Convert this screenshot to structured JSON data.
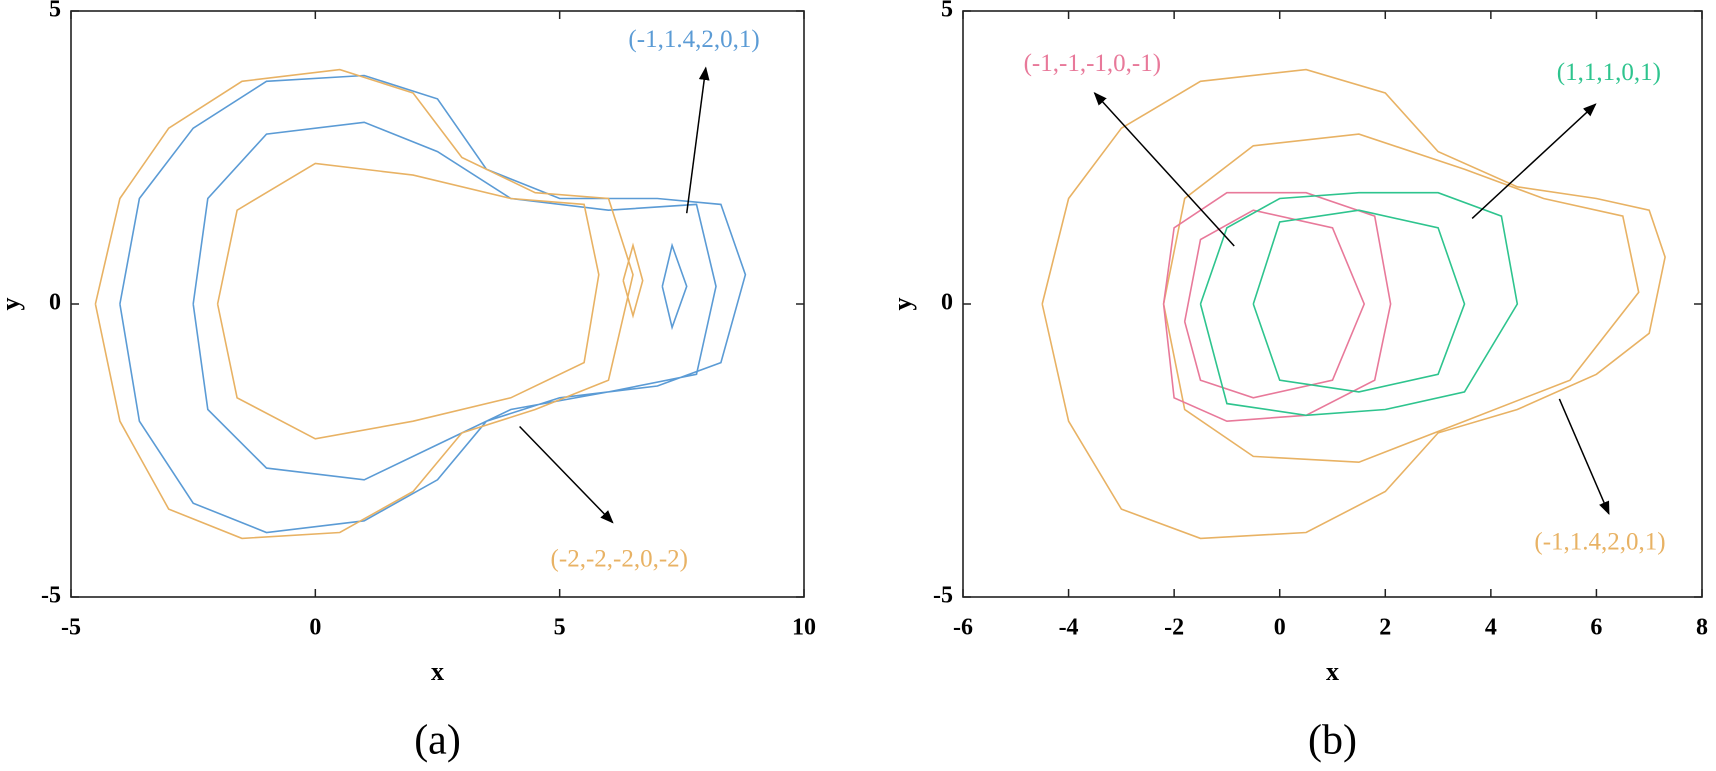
{
  "chart_data": [
    {
      "type": "line",
      "panel_label": "(a)",
      "xlabel": "x",
      "ylabel": "y",
      "xlim": [
        -5,
        10
      ],
      "ylim": [
        -5,
        5
      ],
      "xticks": [
        -5,
        0,
        5,
        10
      ],
      "yticks": [
        -5,
        0,
        5
      ],
      "series": [
        {
          "name": "(-1,1.4,2,0,1)",
          "color": "#5b9bd5",
          "x": [
            -4,
            -3.6,
            -2.5,
            -1,
            1,
            2.5,
            3.5,
            5,
            7,
            8.3,
            8.8,
            8.3,
            7,
            5,
            3.5,
            2.5,
            1,
            -1,
            -2.5,
            -3.6,
            -4,
            null,
            -2.5,
            -2.2,
            -1,
            1,
            2.5,
            4,
            6,
            7.8,
            8.2,
            7.8,
            6,
            4,
            2.5,
            1,
            -1,
            -2.2,
            -2.5,
            null,
            7.1,
            7.3,
            7.6,
            7.3,
            7.1
          ],
          "y": [
            0,
            -2,
            -3.4,
            -3.9,
            -3.7,
            -3,
            -2,
            -1.6,
            -1.4,
            -1,
            0.5,
            1.7,
            1.8,
            1.8,
            2.3,
            3.5,
            3.9,
            3.8,
            3,
            1.8,
            0,
            null,
            0,
            -1.8,
            -2.8,
            -3,
            -2.4,
            -1.8,
            -1.5,
            -1.2,
            0.3,
            1.7,
            1.6,
            1.8,
            2.6,
            3.1,
            2.9,
            1.8,
            0,
            null,
            0.3,
            -0.4,
            0.3,
            1,
            0.3
          ]
        },
        {
          "name": "(-2,-2,-2,0,-2)",
          "color": "#e8b264",
          "x": [
            -4.5,
            -4,
            -3,
            -1.5,
            0.5,
            2,
            3,
            4.5,
            6,
            6.5,
            6,
            4.5,
            3,
            2,
            0.5,
            -1.5,
            -3,
            -4,
            -4.5,
            null,
            -2,
            -1.6,
            0,
            2,
            4,
            5.5,
            5.8,
            5.5,
            4,
            2,
            0,
            -1.6,
            -2,
            null,
            6.3,
            6.5,
            6.7,
            6.5,
            6.3
          ],
          "y": [
            0,
            -2,
            -3.5,
            -4,
            -3.9,
            -3.2,
            -2.2,
            -1.8,
            -1.3,
            0.5,
            1.8,
            1.9,
            2.5,
            3.6,
            4,
            3.8,
            3,
            1.8,
            0,
            null,
            0,
            -1.6,
            -2.3,
            -2,
            -1.6,
            -1,
            0.5,
            1.7,
            1.8,
            2.2,
            2.4,
            1.6,
            0,
            null,
            0.4,
            -0.2,
            0.4,
            1,
            0.4
          ]
        }
      ]
    },
    {
      "type": "line",
      "panel_label": "(b)",
      "xlabel": "x",
      "ylabel": "y",
      "xlim": [
        -6,
        8
      ],
      "ylim": [
        -5,
        5
      ],
      "xticks": [
        -6,
        -4,
        -2,
        0,
        2,
        4,
        6,
        8
      ],
      "yticks": [
        -5,
        0,
        5
      ],
      "series": [
        {
          "name": "(-1,1.4,2,0,1)",
          "color": "#e8b264",
          "x": [
            -4.5,
            -4,
            -3,
            -1.5,
            0.5,
            2,
            3,
            4.5,
            6,
            7,
            7.3,
            7,
            6,
            4.5,
            3,
            2,
            0.5,
            -1.5,
            -3,
            -4,
            -4.5,
            null,
            -2.2,
            -1.8,
            -0.5,
            1.5,
            3.5,
            5.5,
            6.8,
            6.5,
            5,
            3.5,
            1.5,
            -0.5,
            -1.8,
            -2.2
          ],
          "y": [
            0,
            -2,
            -3.5,
            -4,
            -3.9,
            -3.2,
            -2.2,
            -1.8,
            -1.2,
            -0.5,
            0.8,
            1.6,
            1.8,
            2,
            2.6,
            3.6,
            4,
            3.8,
            3,
            1.8,
            0,
            null,
            0,
            -1.8,
            -2.6,
            -2.7,
            -2,
            -1.3,
            0.2,
            1.5,
            1.8,
            2.3,
            2.9,
            2.7,
            1.8,
            0
          ]
        },
        {
          "name": "(-1,-1,-1,0,-1)",
          "color": "#e8799a",
          "x": [
            -2.2,
            -2,
            -1,
            0.5,
            1.8,
            2.1,
            1.8,
            0.5,
            -1,
            -2,
            -2.2,
            null,
            -1.8,
            -1.5,
            -0.5,
            1,
            1.6,
            1,
            -0.5,
            -1.5,
            -1.8
          ],
          "y": [
            0,
            -1.6,
            -2,
            -1.9,
            -1.3,
            0,
            1.5,
            1.9,
            1.9,
            1.3,
            0,
            null,
            -0.3,
            -1.3,
            -1.6,
            -1.3,
            0,
            1.3,
            1.6,
            1.1,
            -0.3
          ]
        },
        {
          "name": "(1,1,1,0,1)",
          "color": "#2ec48e",
          "x": [
            -1.5,
            -1,
            0.5,
            2,
            3.5,
            4.5,
            4.2,
            3,
            1.5,
            0,
            -1,
            -1.5,
            null,
            -0.5,
            0,
            1.5,
            3,
            3.5,
            3,
            1.5,
            0,
            -0.5
          ],
          "y": [
            0,
            -1.7,
            -1.9,
            -1.8,
            -1.5,
            0,
            1.5,
            1.9,
            1.9,
            1.8,
            1.3,
            0,
            null,
            0,
            -1.3,
            -1.5,
            -1.2,
            0,
            1.3,
            1.6,
            1.4,
            0
          ]
        }
      ]
    }
  ]
}
